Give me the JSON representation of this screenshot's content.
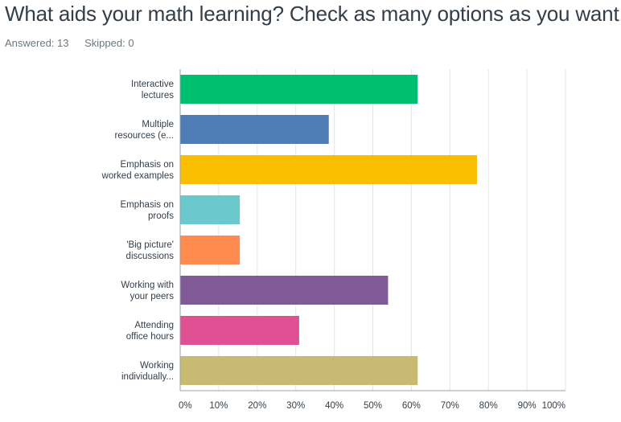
{
  "question": {
    "title": "What aids your math learning? Check as many options as you want.",
    "answered_label": "Answered: 13",
    "skipped_label": "Skipped: 0"
  },
  "chart_data": {
    "type": "bar",
    "orientation": "horizontal",
    "categories": [
      [
        "Interactive",
        "lectures"
      ],
      [
        "Multiple",
        "resources (e..."
      ],
      [
        "Emphasis on",
        "worked examples"
      ],
      [
        "Emphasis on",
        "proofs"
      ],
      [
        "'Big picture'",
        "discussions"
      ],
      [
        "Working with",
        "your peers"
      ],
      [
        "Attending",
        "office hours"
      ],
      [
        "Working",
        "individually..."
      ]
    ],
    "values": [
      61.54,
      38.46,
      76.92,
      15.38,
      15.38,
      53.85,
      30.77,
      61.54
    ],
    "colors": [
      "#00bf6f",
      "#507cb6",
      "#f9be00",
      "#6bc8cd",
      "#ff8b4f",
      "#7f5a96",
      "#e05194",
      "#c9ba73"
    ],
    "xlim": [
      0,
      100
    ],
    "xticks": [
      "0%",
      "10%",
      "20%",
      "30%",
      "40%",
      "50%",
      "60%",
      "70%",
      "80%",
      "90%",
      "100%"
    ],
    "grid": true,
    "title": "",
    "xlabel": "",
    "ylabel": ""
  }
}
